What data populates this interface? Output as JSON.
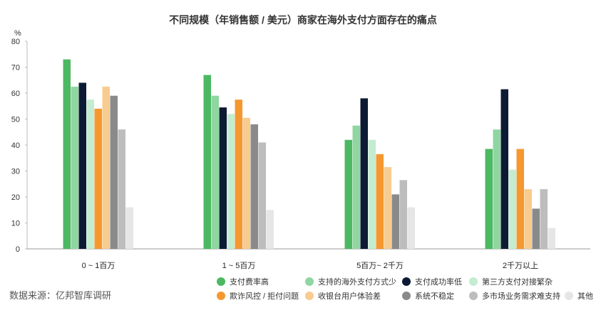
{
  "chart_data": {
    "type": "bar",
    "title": "不同规模（年销售额 / 美元）商家在海外支付方面存在的痛点",
    "ylabel": "%",
    "ylim": [
      0,
      80
    ],
    "yticks": [
      0,
      10,
      20,
      30,
      40,
      50,
      60,
      70,
      80
    ],
    "categories": [
      "0 ~ 1百万",
      "1 ~ 5百万",
      "5百万~ 2千万",
      "2千万以上"
    ],
    "grid": false,
    "legend_position": "bottom-right",
    "series": [
      {
        "name": "支付费率高",
        "color": "#4cb862",
        "values": [
          73,
          67,
          42,
          38.5
        ]
      },
      {
        "name": "支持的海外支付方式少",
        "color": "#8fd6a1",
        "values": [
          62.5,
          59,
          47.5,
          46
        ]
      },
      {
        "name": "支付成功率低",
        "color": "#0d1a33",
        "values": [
          64,
          54.5,
          58,
          61.5
        ]
      },
      {
        "name": "第三方支付对接繁杂",
        "color": "#c3ecd0",
        "values": [
          57.5,
          52,
          42,
          30.5
        ]
      },
      {
        "name": "欺诈风控 / 拒付问题",
        "color": "#f5982f",
        "values": [
          54,
          57.5,
          36.5,
          38.5
        ]
      },
      {
        "name": "收银台用户体验差",
        "color": "#f8cb8e",
        "values": [
          62.5,
          50.5,
          31.5,
          23
        ]
      },
      {
        "name": "系统不稳定",
        "color": "#8a8a8a",
        "values": [
          59,
          48,
          21,
          15.5
        ]
      },
      {
        "name": "多市场业务需求难支持",
        "color": "#bdbdbd",
        "values": [
          46,
          41,
          26.5,
          23
        ]
      },
      {
        "name": "其他",
        "color": "#e6e6e6",
        "values": [
          16,
          15,
          16,
          8
        ]
      }
    ]
  },
  "footer": {
    "source": "数据来源：亿邦智库调研"
  }
}
